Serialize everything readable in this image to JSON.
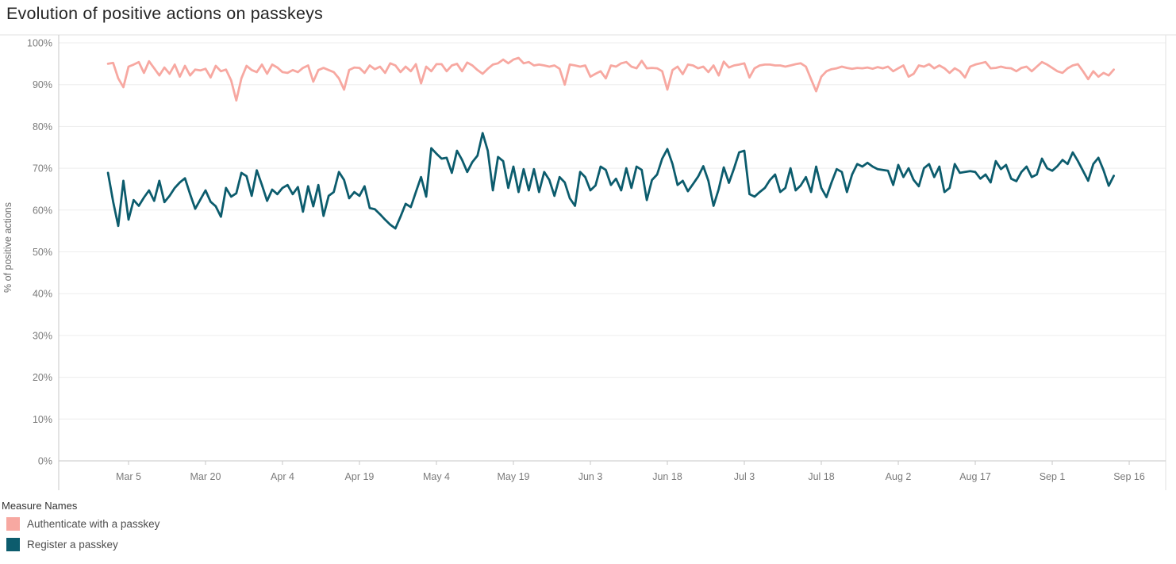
{
  "title": "Evolution of positive actions on passkeys",
  "colors": {
    "authenticate": "#F7A8A1",
    "register": "#0C5C6D",
    "grid": "#EDEDED",
    "axis": "#C7C7C7",
    "border": "#E2E2E2",
    "tick_label": "#7B7B7B",
    "axis_title": "#6E6E6E",
    "title_text": "#262626",
    "legend_title": "#343434",
    "legend_text": "#4E4E4E"
  },
  "legend": {
    "title": "Measure Names"
  },
  "chart_data": {
    "type": "line",
    "title": "Evolution of positive actions on passkeys",
    "xlabel": "",
    "ylabel": "% of positive actions",
    "ylim": [
      0,
      100
    ],
    "grid": "horizontal",
    "legend_position": "bottom-left",
    "x_start_date": "Mar 1",
    "x_end_date": "Sep 13",
    "x_unit": "day",
    "y_tick_labels": [
      "0%",
      "10%",
      "20%",
      "30%",
      "40%",
      "50%",
      "60%",
      "70%",
      "80%",
      "90%",
      "100%"
    ],
    "x_ticks": [
      {
        "label": "Mar 5",
        "day": 4
      },
      {
        "label": "Mar 20",
        "day": 19
      },
      {
        "label": "Apr 4",
        "day": 34
      },
      {
        "label": "Apr 19",
        "day": 49
      },
      {
        "label": "May 4",
        "day": 64
      },
      {
        "label": "May 19",
        "day": 79
      },
      {
        "label": "Jun 3",
        "day": 94
      },
      {
        "label": "Jun 18",
        "day": 109
      },
      {
        "label": "Jul 3",
        "day": 124
      },
      {
        "label": "Jul 18",
        "day": 139
      },
      {
        "label": "Aug 2",
        "day": 154
      },
      {
        "label": "Aug 17",
        "day": 169
      },
      {
        "label": "Sep 1",
        "day": 184
      },
      {
        "label": "Sep 16",
        "day": 199
      }
    ],
    "series": [
      {
        "name": "Authenticate with a passkey",
        "color": "#F7A8A1",
        "values": [
          95.0,
          95.2,
          91.5,
          89.4,
          94.3,
          94.8,
          95.4,
          92.8,
          95.6,
          93.9,
          92.2,
          94.1,
          92.6,
          94.8,
          91.9,
          94.5,
          92.2,
          93.6,
          93.4,
          93.8,
          91.7,
          94.5,
          93.2,
          93.6,
          91.0,
          86.2,
          91.5,
          94.5,
          93.5,
          93.0,
          94.8,
          92.6,
          94.8,
          94.1,
          93.0,
          92.8,
          93.5,
          93.0,
          94.0,
          94.6,
          90.7,
          93.5,
          94.0,
          93.5,
          93.0,
          91.5,
          88.8,
          93.5,
          94.1,
          94.0,
          92.8,
          94.6,
          93.7,
          94.3,
          92.8,
          95.1,
          94.6,
          93.0,
          94.3,
          93.2,
          94.9,
          90.3,
          94.3,
          93.2,
          94.9,
          94.9,
          93.2,
          94.6,
          95.0,
          93.2,
          95.3,
          94.6,
          93.5,
          92.6,
          93.8,
          94.8,
          95.1,
          96.0,
          95.1,
          96.0,
          96.4,
          95.1,
          95.4,
          94.6,
          94.8,
          94.6,
          94.3,
          94.6,
          93.8,
          90.0,
          94.8,
          94.6,
          94.3,
          94.6,
          91.9,
          92.6,
          93.2,
          91.5,
          94.6,
          94.3,
          95.1,
          95.4,
          94.3,
          93.9,
          95.7,
          93.9,
          94.0,
          93.9,
          93.2,
          88.8,
          93.5,
          94.3,
          92.5,
          94.8,
          94.6,
          93.9,
          94.3,
          93.0,
          94.6,
          92.2,
          95.5,
          94.1,
          94.6,
          94.8,
          95.1,
          91.7,
          93.9,
          94.6,
          94.8,
          94.8,
          94.6,
          94.6,
          94.3,
          94.6,
          94.9,
          95.1,
          94.3,
          91.3,
          88.4,
          91.9,
          93.2,
          93.7,
          93.9,
          94.3,
          94.0,
          93.8,
          94.0,
          93.9,
          94.1,
          93.8,
          94.2,
          93.9,
          94.3,
          93.2,
          93.9,
          94.6,
          91.9,
          92.6,
          94.6,
          94.3,
          94.9,
          93.9,
          94.6,
          93.9,
          92.8,
          93.9,
          93.2,
          91.7,
          94.3,
          94.8,
          95.1,
          95.4,
          93.9,
          94.0,
          94.3,
          94.0,
          93.9,
          93.2,
          94.0,
          94.3,
          93.2,
          94.3,
          95.4,
          94.8,
          94.0,
          93.2,
          92.8,
          93.9,
          94.6,
          94.9,
          93.2,
          91.3,
          93.2,
          91.9,
          92.8,
          92.2,
          93.6
        ]
      },
      {
        "name": "Register a passkey",
        "color": "#0C5C6D",
        "values": [
          68.9,
          62.0,
          56.2,
          67.0,
          57.7,
          62.4,
          61.0,
          63.0,
          64.7,
          62.2,
          67.0,
          61.9,
          63.4,
          65.3,
          66.6,
          67.6,
          63.8,
          60.3,
          62.5,
          64.7,
          62.0,
          60.9,
          58.4,
          65.3,
          63.2,
          64.0,
          68.9,
          68.1,
          63.4,
          69.5,
          66.0,
          62.2,
          64.9,
          63.8,
          65.3,
          66.0,
          63.8,
          65.5,
          59.6,
          65.7,
          60.9,
          66.0,
          58.6,
          63.4,
          64.3,
          69.1,
          67.2,
          62.8,
          64.3,
          63.4,
          65.7,
          60.5,
          60.2,
          59.0,
          57.7,
          56.5,
          55.6,
          58.4,
          61.5,
          60.7,
          64.3,
          67.9,
          63.2,
          74.8,
          73.5,
          72.3,
          72.5,
          68.9,
          74.2,
          72.0,
          69.1,
          71.5,
          73.0,
          78.4,
          74.2,
          64.7,
          72.7,
          71.7,
          65.3,
          70.4,
          64.3,
          69.8,
          64.7,
          69.8,
          64.3,
          69.1,
          67.2,
          63.4,
          67.9,
          66.6,
          62.8,
          61.0,
          69.1,
          67.9,
          64.7,
          65.9,
          70.4,
          69.6,
          66.0,
          67.5,
          64.7,
          70.0,
          65.3,
          70.4,
          69.6,
          62.4,
          67.2,
          68.5,
          72.3,
          74.6,
          71.0,
          66.0,
          67.0,
          64.5,
          66.2,
          68.0,
          70.5,
          67.0,
          61.0,
          65.0,
          70.2,
          66.5,
          70.0,
          73.8,
          74.2,
          63.8,
          63.2,
          64.3,
          65.3,
          67.2,
          68.5,
          64.3,
          65.3,
          70.0,
          64.7,
          65.9,
          67.9,
          64.3,
          70.4,
          65.3,
          63.1,
          66.6,
          69.8,
          69.1,
          64.3,
          68.5,
          71.0,
          70.4,
          71.3,
          70.4,
          69.8,
          69.6,
          69.4,
          66.0,
          70.8,
          67.9,
          70.0,
          67.2,
          65.7,
          70.0,
          71.0,
          67.9,
          70.4,
          64.3,
          65.3,
          71.0,
          68.9,
          69.1,
          69.3,
          69.1,
          67.5,
          68.5,
          66.6,
          71.7,
          69.8,
          70.8,
          67.5,
          66.9,
          69.1,
          70.4,
          67.9,
          68.5,
          72.3,
          70.0,
          69.4,
          70.5,
          72.0,
          71.0,
          73.8,
          71.7,
          69.4,
          67.0,
          71.0,
          72.5,
          69.5,
          65.8,
          68.2
        ]
      }
    ]
  }
}
